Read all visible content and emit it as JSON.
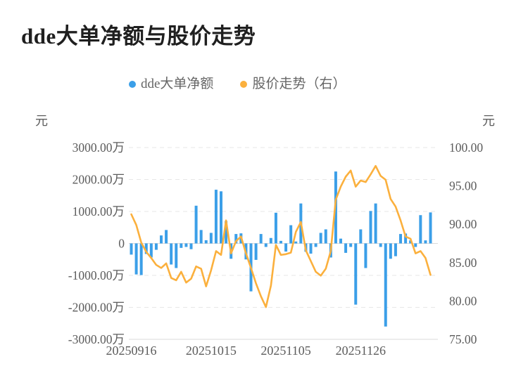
{
  "title": "dde大单净额与股价走势",
  "axes": {
    "left_unit": "元",
    "right_unit": "元"
  },
  "colors": {
    "bar": "#3b9fe8",
    "line": "#fbb03d",
    "grid_dashed": "#e7e7e7",
    "grid_solid": "#d9d9d9",
    "tick_text": "#5c5c5c",
    "legend_text": "#666666",
    "title_text": "#1f1f1f",
    "background": "#ffffff"
  },
  "chart_data": {
    "type": "combo",
    "subtype": [
      "bar",
      "line"
    ],
    "n_points": 61,
    "legend_position": "top-center",
    "grid": {
      "horizontal_gridlines": true,
      "style": "dashed"
    },
    "x_axis": {
      "kind": "trading-day categories",
      "tick_labels": [
        "20250916",
        "20251015",
        "20251105",
        "20251126"
      ],
      "tick_indices": [
        0,
        16,
        31,
        46
      ]
    },
    "left_axis": {
      "unit": "元",
      "tick_labels": [
        "3000.00万",
        "2000.00万",
        "1000.00万",
        "0",
        "-1000.00万",
        "-2000.00万",
        "-3000.00万"
      ],
      "tick_values_wan": [
        3000,
        2000,
        1000,
        0,
        -1000,
        -2000,
        -3000
      ],
      "min_wan": -3000,
      "max_wan": 3000
    },
    "right_axis": {
      "unit": "元",
      "tick_labels": [
        "100.00",
        "95.00",
        "90.00",
        "85.00",
        "80.00",
        "75.00"
      ],
      "tick_values": [
        100,
        95,
        90,
        85,
        80,
        75
      ],
      "min": 75,
      "max": 100
    },
    "series": [
      {
        "name": "dde大单净额",
        "type": "bar",
        "y_axis": "left",
        "values_unit": "万元",
        "color": "#3b9fe8",
        "values": [
          -350,
          -970,
          -990,
          -330,
          -440,
          -200,
          250,
          420,
          -660,
          -770,
          -140,
          -110,
          -180,
          1180,
          420,
          100,
          330,
          1680,
          1630,
          700,
          -480,
          295,
          315,
          -500,
          -1500,
          -515,
          295,
          -110,
          170,
          960,
          80,
          -255,
          570,
          60,
          1250,
          -260,
          -320,
          -110,
          330,
          440,
          -440,
          2250,
          150,
          -295,
          -110,
          -1915,
          440,
          -770,
          1015,
          1250,
          -110,
          -2600,
          -480,
          -400,
          295,
          310,
          95,
          -110,
          885,
          95,
          970
        ]
      },
      {
        "name": "股价走势（右）",
        "type": "line",
        "y_axis": "right",
        "values_unit": "元",
        "color": "#fbb03d",
        "values": [
          91.3,
          89.9,
          87.6,
          86.4,
          85.6,
          84.7,
          84.3,
          84.9,
          83.0,
          82.7,
          83.8,
          82.4,
          82.9,
          84.5,
          84.2,
          81.9,
          84.0,
          86.5,
          86.0,
          90.5,
          86.2,
          87.8,
          88.4,
          86.2,
          84.3,
          82.3,
          80.6,
          79.2,
          82.0,
          87.3,
          86.0,
          86.1,
          86.3,
          89.0,
          90.3,
          86.6,
          85.2,
          83.8,
          83.3,
          84.2,
          86.5,
          93.2,
          94.9,
          96.2,
          97.0,
          94.9,
          95.7,
          95.5,
          96.5,
          97.6,
          96.3,
          95.8,
          93.3,
          92.3,
          90.5,
          88.4,
          88.1,
          86.2,
          86.5,
          85.6,
          83.4
        ]
      }
    ]
  }
}
